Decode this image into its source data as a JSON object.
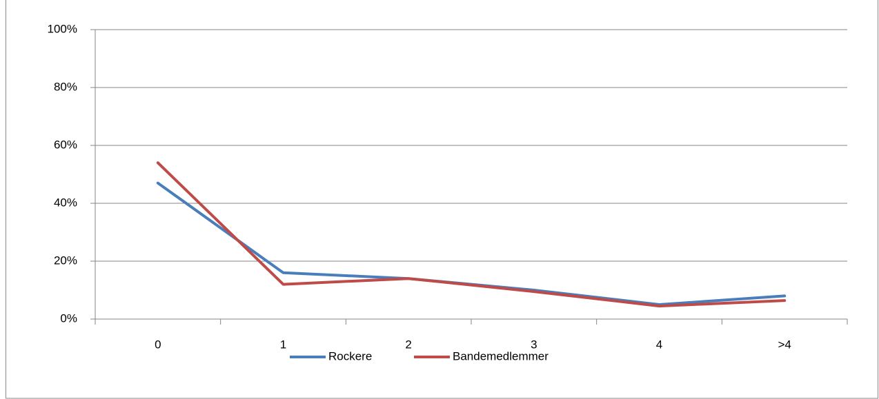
{
  "chart_data": {
    "type": "line",
    "categories": [
      "0",
      "1",
      "2",
      "3",
      "4",
      ">4"
    ],
    "series": [
      {
        "name": "Rockere",
        "color": "#4a7ebb",
        "values": [
          47,
          16,
          14,
          10,
          5,
          8
        ]
      },
      {
        "name": "Bandemedlemmer",
        "color": "#be4b48",
        "values": [
          54,
          12,
          14,
          9.5,
          4.5,
          6.4
        ]
      }
    ],
    "ylim": [
      0,
      100
    ],
    "yticks": [
      {
        "value": 0,
        "label": "0%"
      },
      {
        "value": 20,
        "label": "20%"
      },
      {
        "value": 40,
        "label": "40%"
      },
      {
        "value": 60,
        "label": "60%"
      },
      {
        "value": 80,
        "label": "80%"
      },
      {
        "value": 100,
        "label": "100%"
      }
    ],
    "grid": true,
    "legend": "bottom"
  }
}
